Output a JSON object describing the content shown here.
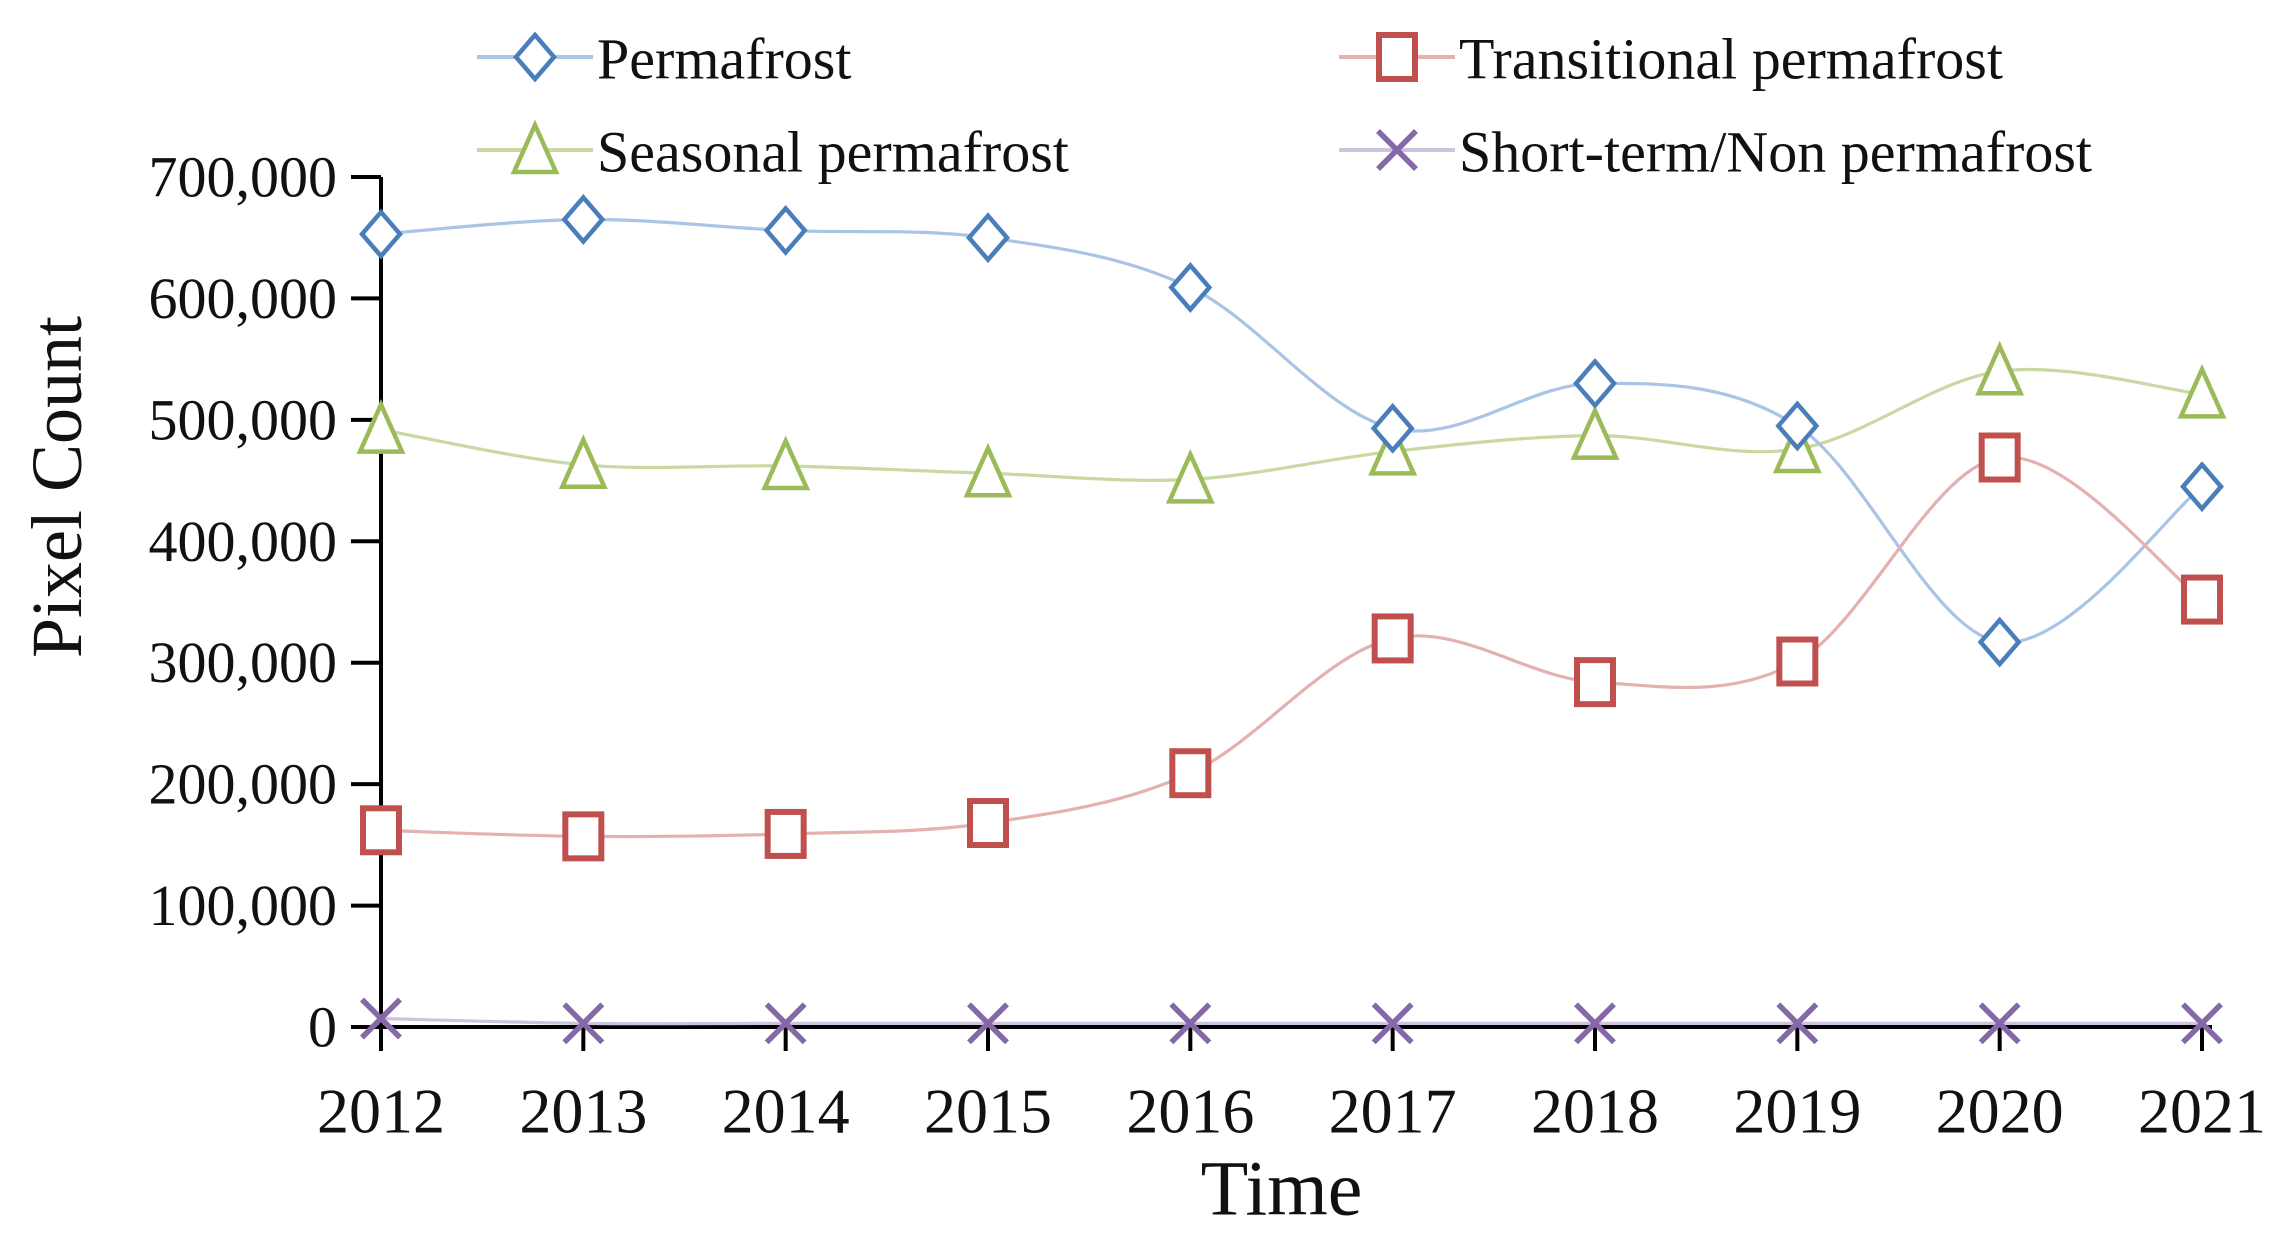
{
  "chart_data": {
    "type": "line",
    "title": "",
    "xlabel": "Time",
    "ylabel": "Pixel Count",
    "categories": [
      "2012",
      "2013",
      "2014",
      "2015",
      "2016",
      "2017",
      "2018",
      "2019",
      "2020",
      "2021"
    ],
    "ylim": [
      0,
      700000
    ],
    "ytick_step": 100000,
    "ytick_labels": [
      "0",
      "100,000",
      "200,000",
      "300,000",
      "400,000",
      "500,000",
      "600,000",
      "700,000"
    ],
    "grid": false,
    "legend_position": "top",
    "background": "#ffffff",
    "axis_color": "#000000",
    "text_color": "#111111",
    "series": [
      {
        "name": "Permafrost",
        "marker": "diamond",
        "color": "#4a7ebb",
        "line_color": "#a9c4e6",
        "values": [
          653000,
          665000,
          656000,
          650000,
          609000,
          493000,
          530000,
          495000,
          317000,
          445000
        ]
      },
      {
        "name": "Transitional permafrost",
        "marker": "square",
        "color": "#c0504d",
        "line_color": "#e5b1b0",
        "values": [
          162000,
          157000,
          159000,
          168000,
          209000,
          320000,
          284000,
          301000,
          469000,
          352000
        ]
      },
      {
        "name": "Seasonal permafrost",
        "marker": "triangle",
        "color": "#9bbb59",
        "line_color": "#c8daa2",
        "values": [
          492000,
          463000,
          462000,
          456000,
          451000,
          474000,
          487000,
          476000,
          540000,
          521000
        ]
      },
      {
        "name": "Short-term/Non permafrost",
        "marker": "x",
        "color": "#8468a8",
        "line_color": "#cdc3dd",
        "values": [
          7000,
          3000,
          3000,
          3000,
          3000,
          3000,
          3000,
          3000,
          3000,
          3000
        ]
      }
    ]
  }
}
